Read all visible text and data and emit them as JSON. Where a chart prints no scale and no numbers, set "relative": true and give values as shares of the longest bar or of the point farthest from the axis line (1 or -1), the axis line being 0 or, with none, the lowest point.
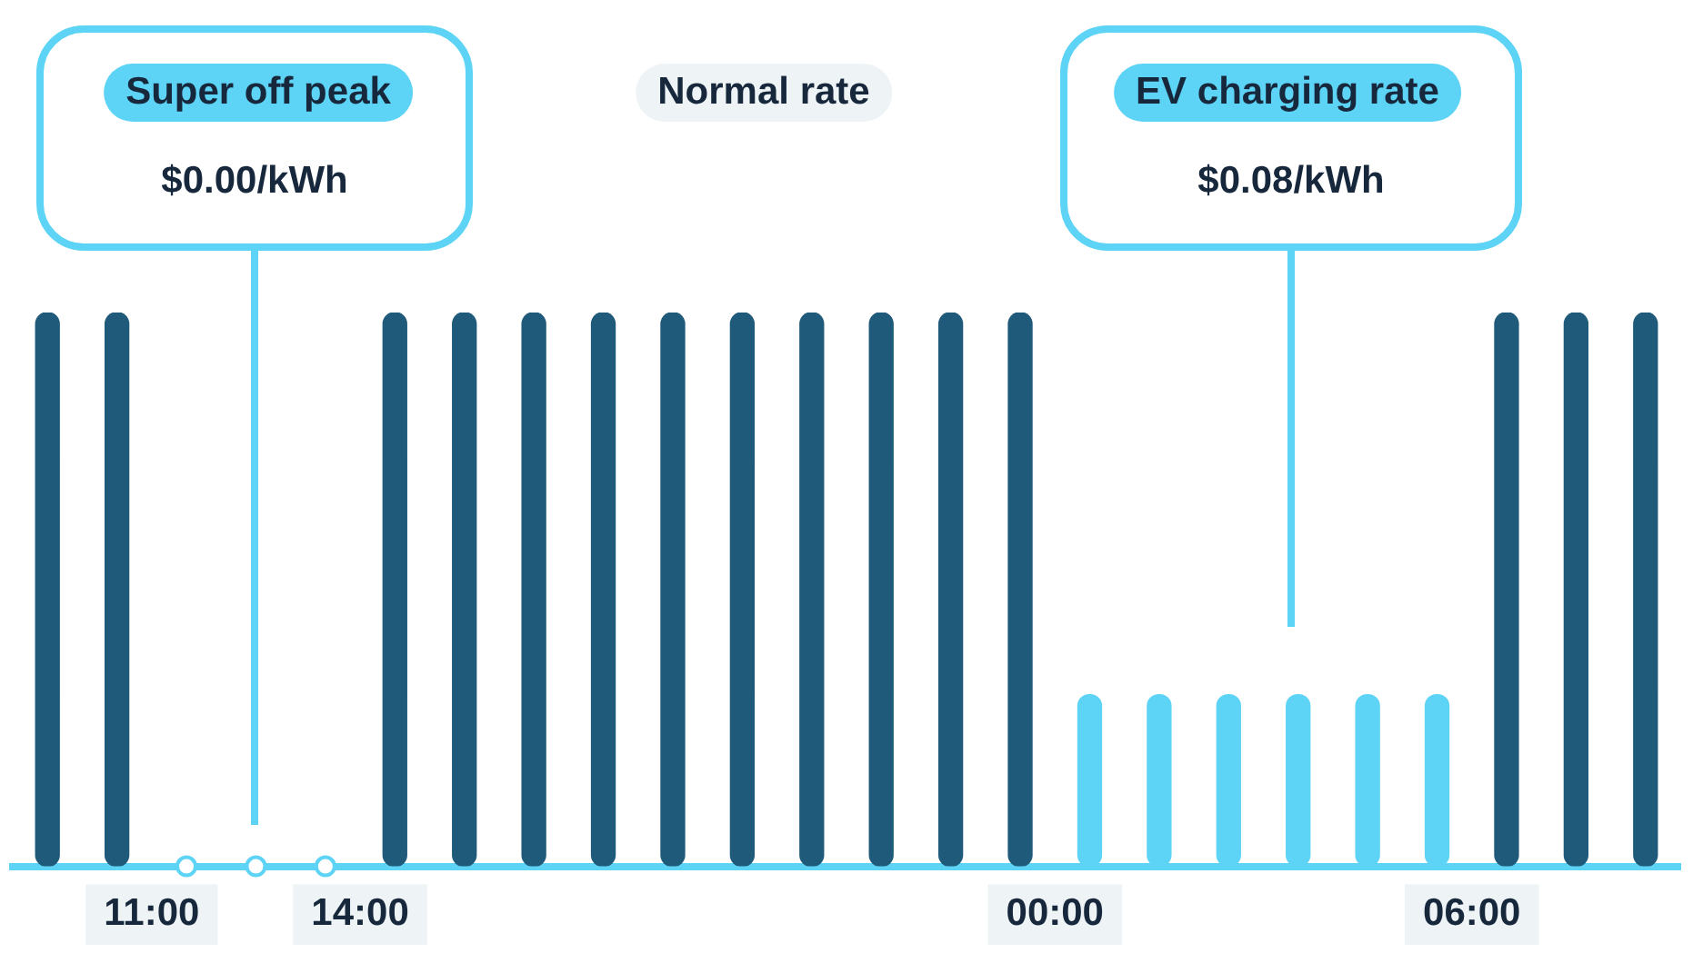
{
  "chart_data": {
    "type": "bar",
    "relative": true,
    "x": [
      "--01-01T09:30",
      "--01-01T10:30",
      "--01-01T11:30",
      "--01-01T12:30",
      "--01-01T13:30",
      "--01-01T14:30",
      "--01-01T15:30",
      "--01-01T16:30",
      "--01-01T17:30",
      "--01-01T18:30",
      "--01-01T19:30",
      "--01-01T20:30",
      "--01-01T21:30",
      "--01-01T22:30",
      "--01-01T23:30",
      "--01-02T00:30",
      "--01-02T01:30",
      "--01-02T02:30",
      "--01-02T03:30",
      "--01-02T04:30",
      "--01-02T05:30",
      "--01-02T06:30",
      "--01-02T07:30",
      "--01-02T08:30"
    ],
    "series": [
      {
        "values": [
          1,
          1,
          0,
          0,
          0,
          1,
          1,
          1,
          1,
          1,
          1,
          1,
          1,
          1,
          1,
          0.31,
          0.31,
          0.31,
          0.31,
          0.31,
          0.31,
          1,
          1,
          1
        ],
        "colors": [
          "#1f5a7a",
          "#1f5a7a",
          "#5dd3f5",
          "#5dd3f5",
          "#5dd3f5",
          "#1f5a7a",
          "#1f5a7a",
          "#1f5a7a",
          "#1f5a7a",
          "#1f5a7a",
          "#1f5a7a",
          "#1f5a7a",
          "#1f5a7a",
          "#1f5a7a",
          "#1f5a7a",
          "#5dd3f5",
          "#5dd3f5",
          "#5dd3f5",
          "#5dd3f5",
          "#5dd3f5",
          "#5dd3f5",
          "#1f5a7a",
          "#1f5a7a",
          "#1f5a7a"
        ]
      },
      {
        "type": "scatter",
        "x": [
          "--01-01T11:30",
          "--01-01T12:30",
          "--01-01T13:30"
        ],
        "values": [
          0,
          0,
          0
        ],
        "color": "#5dd3f5",
        "marker": "circle"
      }
    ],
    "xlim": [
      "--01-01T09:00",
      "--01-02T09:00"
    ],
    "xticks": [
      {
        "value": "--01-01T11:00",
        "label": "11:00"
      },
      {
        "value": "--01-01T14:00",
        "label": "14:00"
      },
      {
        "value": "--01-02T00:00",
        "label": "00:00"
      },
      {
        "value": "--01-02T06:00",
        "label": "06:00"
      }
    ],
    "annotations": [
      "Super off peak",
      "$0.00/kWh",
      "Normal rate",
      "EV charging rate",
      "$0.08/kWh"
    ],
    "grid": false,
    "legend": false
  }
}
